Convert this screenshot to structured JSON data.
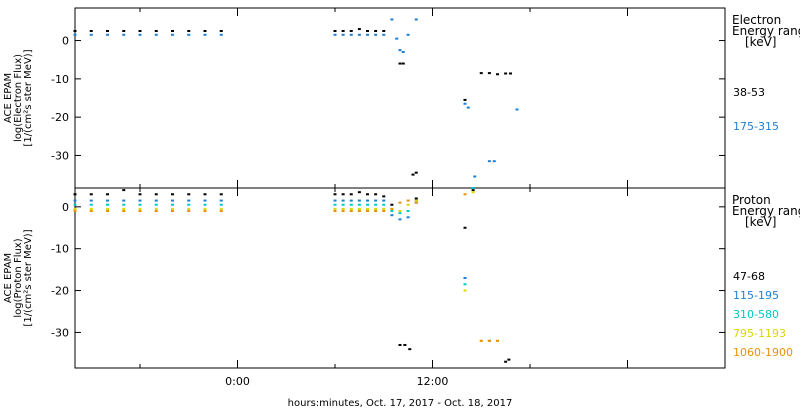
{
  "xlabel": "hours:minutes, Oct. 17, 2017 - Oct. 18, 2017",
  "x_ticks": [
    "0:00",
    "12:00"
  ],
  "chart_data": [
    {
      "type": "scatter",
      "panel": "electron",
      "ylabel_lines": [
        "ACE EPAM",
        "log(Electron Flux)",
        "[1/(cm²s ster MeV)]"
      ],
      "legend_title_lines": [
        "Electron",
        "Energy range",
        "[keV]"
      ],
      "legend_placement": "right",
      "xlim": [
        -10,
        30
      ],
      "ylim": [
        -38.5,
        8.5
      ],
      "y_ticks": [
        0,
        -10,
        -20,
        -30
      ],
      "x_unit": "hours relative to Oct. 18, 2017 00:00",
      "series": [
        {
          "name": "38-53",
          "color": "#000000",
          "x": [
            -10,
            -9,
            -8,
            -7,
            -6,
            -5,
            -4,
            -3,
            -2,
            -1,
            6.0,
            6.5,
            7.0,
            7.5,
            8.0,
            8.5,
            9.0,
            10.0,
            10.2,
            10.8,
            11.0,
            14.0,
            15.0,
            15.5,
            16.0,
            16.5,
            16.8
          ],
          "y": [
            2.5,
            2.5,
            2.5,
            2.5,
            2.5,
            2.5,
            2.5,
            2.5,
            2.5,
            2.5,
            2.5,
            2.5,
            2.5,
            3.0,
            2.5,
            2.5,
            2.5,
            -6.0,
            -6.0,
            -35.0,
            -34.5,
            -15.5,
            -8.5,
            -8.5,
            -8.8,
            -8.6,
            -8.6
          ]
        },
        {
          "name": "175-315",
          "color": "#1e7fd4",
          "x": [
            -10,
            -9,
            -8,
            -7,
            -6,
            -5,
            -4,
            -3,
            -2,
            -1,
            6.0,
            6.5,
            7.0,
            7.5,
            8.0,
            8.5,
            9.0,
            9.5,
            9.8,
            10.0,
            10.2,
            10.5,
            11.0,
            14.0,
            14.2,
            14.6,
            15.5,
            15.8,
            17.2
          ],
          "y": [
            1.5,
            1.5,
            1.5,
            1.5,
            1.5,
            1.5,
            1.5,
            1.5,
            1.5,
            1.5,
            1.5,
            1.5,
            1.5,
            1.5,
            1.5,
            1.5,
            1.5,
            5.5,
            0.5,
            -2.5,
            -3.0,
            1.5,
            5.5,
            -16.5,
            -17.5,
            -35.5,
            -31.5,
            -31.5,
            -18.0
          ]
        }
      ]
    },
    {
      "type": "scatter",
      "panel": "proton",
      "ylabel_lines": [
        "ACE EPAM",
        "log(Proton Flux)",
        "[1/(cm²s ster MeV)]"
      ],
      "legend_title_lines": [
        "Proton",
        "Energy range",
        "[keV]"
      ],
      "legend_placement": "right",
      "xlim": [
        -10,
        30
      ],
      "ylim": [
        -38.5,
        4.5
      ],
      "y_ticks": [
        0,
        -10,
        -20,
        -30
      ],
      "x_unit": "hours relative to Oct. 18, 2017 00:00",
      "series": [
        {
          "name": "47-68",
          "color": "#000000",
          "x": [
            -10,
            -9,
            -8,
            -7,
            -6,
            -5,
            -4,
            -3,
            -2,
            -1,
            6.0,
            6.5,
            7.0,
            7.5,
            8.0,
            8.5,
            9.0,
            9.5,
            10.0,
            10.3,
            10.6,
            11.0,
            14.0,
            14.5,
            16.5,
            16.7
          ],
          "y": [
            3.0,
            3.0,
            3.0,
            4.0,
            3.0,
            3.0,
            3.0,
            3.0,
            3.0,
            3.0,
            3.0,
            3.0,
            3.0,
            3.5,
            3.0,
            3.0,
            2.5,
            0.5,
            -33.0,
            -33.0,
            -34.0,
            2.0,
            -5.0,
            4.0,
            -37.0,
            -36.5
          ]
        },
        {
          "name": "115-195",
          "color": "#1e7fd4",
          "x": [
            -10,
            -9,
            -8,
            -7,
            -6,
            -5,
            -4,
            -3,
            -2,
            -1,
            6.0,
            6.5,
            7.0,
            7.5,
            8.0,
            8.5,
            9.0,
            9.5,
            10.0,
            10.5,
            11.0,
            14.0,
            14.5
          ],
          "y": [
            1.5,
            1.5,
            1.5,
            1.5,
            1.5,
            1.5,
            1.5,
            1.5,
            1.5,
            1.5,
            1.5,
            1.5,
            1.5,
            1.5,
            1.5,
            1.5,
            1.5,
            -2.0,
            -3.0,
            -2.5,
            1.5,
            -17.0,
            4.5
          ]
        },
        {
          "name": "310-580",
          "color": "#00c8c8",
          "x": [
            -10,
            -9,
            -8,
            -7,
            -6,
            -5,
            -4,
            -3,
            -2,
            -1,
            6.0,
            6.5,
            7.0,
            7.5,
            8.0,
            8.5,
            9.0,
            9.5,
            10.0,
            10.5,
            11.0,
            14.0,
            14.5,
            15.5
          ],
          "y": [
            0.5,
            0.5,
            0.5,
            0.5,
            0.5,
            0.5,
            0.5,
            0.5,
            0.5,
            0.5,
            0.5,
            0.5,
            0.5,
            0.5,
            0.5,
            0.5,
            0.5,
            -1.0,
            -1.5,
            -1.0,
            1.0,
            -18.5,
            4.5,
            -32.0
          ]
        },
        {
          "name": "795-1193",
          "color": "#d8d800",
          "x": [
            -10,
            -9,
            -8,
            -7,
            -6,
            -5,
            -4,
            -3,
            -2,
            -1,
            6.0,
            6.5,
            7.0,
            7.5,
            8.0,
            8.5,
            9.0,
            9.5,
            10.0,
            10.5,
            11.0,
            14.0,
            14.5,
            15.0,
            15.5,
            16.0
          ],
          "y": [
            -0.5,
            -0.5,
            -0.5,
            -0.5,
            -0.5,
            -0.5,
            -0.5,
            -0.5,
            -0.5,
            -0.5,
            -0.5,
            -0.5,
            -0.5,
            -0.5,
            -0.5,
            -0.5,
            -0.5,
            -0.5,
            -1.0,
            0.5,
            1.5,
            -20.0,
            3.5,
            -32.0,
            -32.0,
            -32.0
          ]
        },
        {
          "name": "1060-1900",
          "color": "#e8900a",
          "x": [
            -10,
            -9,
            -8,
            -7,
            -6,
            -5,
            -4,
            -3,
            -2,
            -1,
            6.0,
            6.5,
            7.0,
            7.5,
            8.0,
            8.5,
            9.0,
            9.5,
            10.0,
            10.5,
            11.0,
            14.0,
            15.0,
            15.5,
            16.0
          ],
          "y": [
            -1.0,
            -1.0,
            -1.0,
            -1.0,
            -1.0,
            -1.0,
            -1.0,
            -1.0,
            -1.0,
            -1.0,
            -1.0,
            -1.0,
            -1.0,
            -1.0,
            -1.0,
            -1.0,
            -1.0,
            -0.5,
            1.0,
            1.5,
            1.0,
            3.0,
            -32.0,
            -32.0,
            -32.0
          ]
        }
      ]
    }
  ]
}
